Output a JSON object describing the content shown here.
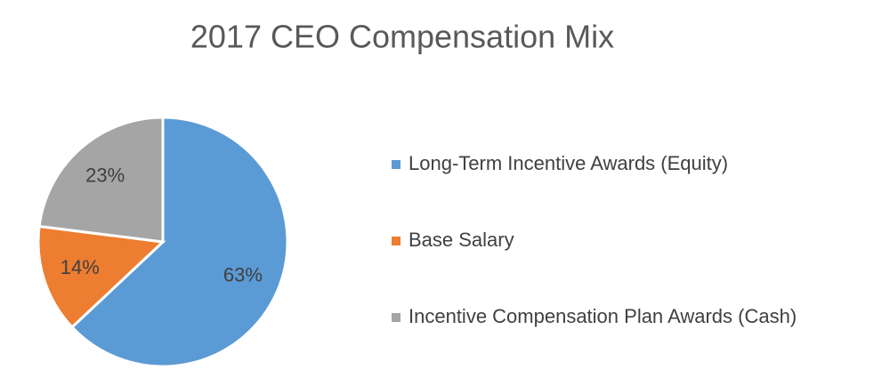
{
  "chart_data": {
    "type": "pie",
    "title": "2017 CEO Compensation Mix",
    "categories": [
      "Long-Term Incentive Awards (Equity)",
      "Base Salary",
      "Incentive Compensation Plan Awards (Cash)"
    ],
    "values": [
      63,
      14,
      23
    ],
    "value_labels": [
      "63%",
      "14%",
      "23%"
    ],
    "colors": [
      "#5b9bd5",
      "#ed7d31",
      "#a5a5a5"
    ],
    "legend": "right"
  }
}
